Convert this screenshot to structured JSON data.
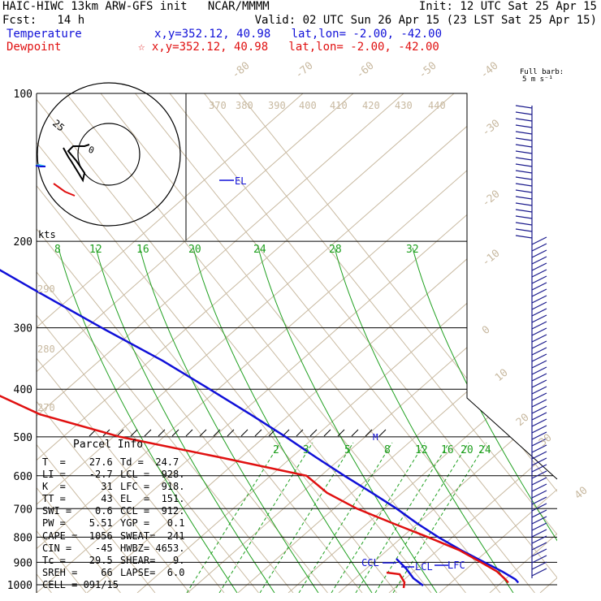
{
  "header": {
    "model": "HAIC-HIWC 13km ARW-GFS init   NCAR/MMMM",
    "init": "Init: 12 UTC Sat 25 Apr 15",
    "fcst": "Fcst:   14 h",
    "valid": "Valid: 02 UTC Sun 26 Apr 15 (23 LST Sat 25 Apr 15)",
    "temperature_label": "Temperature",
    "temperature_loc": "x,y=352.12, 40.98   lat,lon= -2.00, -42.00",
    "dewpoint_label": "Dewpoint",
    "dewpoint_loc": "☆ x,y=352.12, 40.98   lat,lon= -2.00, -42.00",
    "full_barb": "Full barb:",
    "barb_units": "5 m s⁻¹"
  },
  "colors": {
    "temperature": "#1010d8",
    "dewpoint": "#e01010",
    "isotherm": "#c8b9a0",
    "mixing_ratio": "#20a020",
    "grid": "#000000"
  },
  "hodograph": {
    "speed_ring_label": "25",
    "zero_label": "0",
    "units_label": "kts"
  },
  "parcel": {
    "title": "Parcel Info",
    "rows": [
      [
        "T  =    27.6",
        "Td =  24.7"
      ],
      [
        "LI =    -2.7",
        "LCL =  928."
      ],
      [
        "K  =      31",
        "LFC =  918."
      ],
      [
        "TT =      43",
        "EL  =  151."
      ],
      [
        "SWI =    0.6",
        "CCL =  912."
      ],
      [
        "PW =    5.51",
        "YGP =   0.1"
      ],
      [
        "CAPE =  1056",
        "SWEAT=  241"
      ],
      [
        "CIN =    -45",
        "HWBZ= 4653."
      ],
      [
        "Tc =    29.5",
        "SHEAR=   9."
      ],
      [
        "SREH =    66",
        "LAPSE=  6.0"
      ],
      [
        "CELL = 091/15",
        ""
      ]
    ]
  },
  "levels": {
    "el": "EL",
    "ccl": "CCL",
    "lcl": "LCL",
    "lfc": "LFC",
    "m": "M"
  },
  "chart_data": {
    "type": "line",
    "title": "",
    "xlabel": "",
    "ylabel": "",
    "y_scale": "log-pressure",
    "pressure_ticks": [
      100,
      200,
      300,
      400,
      500,
      600,
      700,
      800,
      900,
      1000
    ],
    "isotherm_labels": [
      -80,
      -70,
      -60,
      -50,
      -40,
      -30,
      -20,
      -10,
      0,
      10,
      20,
      30,
      40
    ],
    "theta_labels": [
      370,
      380,
      390,
      400,
      410,
      420,
      430,
      440
    ],
    "theta_low_labels": [
      290,
      280,
      270
    ],
    "mixing_ratio_upper_labels": [
      8,
      12,
      16,
      20,
      24,
      28,
      32
    ],
    "mixing_ratio_lower_labels": [
      2,
      3,
      5,
      8,
      12,
      16,
      20,
      24
    ],
    "series": [
      {
        "name": "Temperature",
        "points": [
          [
            100,
            -80
          ],
          [
            120,
            -77
          ],
          [
            150,
            -71
          ],
          [
            175,
            -65
          ],
          [
            200,
            -58
          ],
          [
            250,
            -45
          ],
          [
            300,
            -34
          ],
          [
            350,
            -24
          ],
          [
            400,
            -17
          ],
          [
            450,
            -11
          ],
          [
            500,
            -6
          ],
          [
            550,
            -2
          ],
          [
            600,
            2
          ],
          [
            650,
            6
          ],
          [
            700,
            9.5
          ],
          [
            750,
            12
          ],
          [
            800,
            15
          ],
          [
            850,
            18.5
          ],
          [
            900,
            22.5
          ],
          [
            940,
            25.5
          ],
          [
            975,
            27.5
          ],
          [
            990,
            27.6
          ]
        ]
      },
      {
        "name": "Dewpoint",
        "points": [
          [
            100,
            -101
          ],
          [
            125,
            -102
          ],
          [
            150,
            -104
          ],
          [
            175,
            -106
          ],
          [
            200,
            -104
          ],
          [
            225,
            -100
          ],
          [
            250,
            -96
          ],
          [
            275,
            -86
          ],
          [
            300,
            -80
          ],
          [
            330,
            -75
          ],
          [
            370,
            -80
          ],
          [
            400,
            -82
          ],
          [
            450,
            -72
          ],
          [
            500,
            -54
          ],
          [
            550,
            -30
          ],
          [
            600,
            -9
          ],
          [
            650,
            -7
          ],
          [
            700,
            -2
          ],
          [
            750,
            5
          ],
          [
            800,
            12
          ],
          [
            850,
            18
          ],
          [
            900,
            21.5
          ],
          [
            940,
            24
          ],
          [
            975,
            24.6
          ],
          [
            990,
            24.7
          ]
        ]
      }
    ]
  }
}
